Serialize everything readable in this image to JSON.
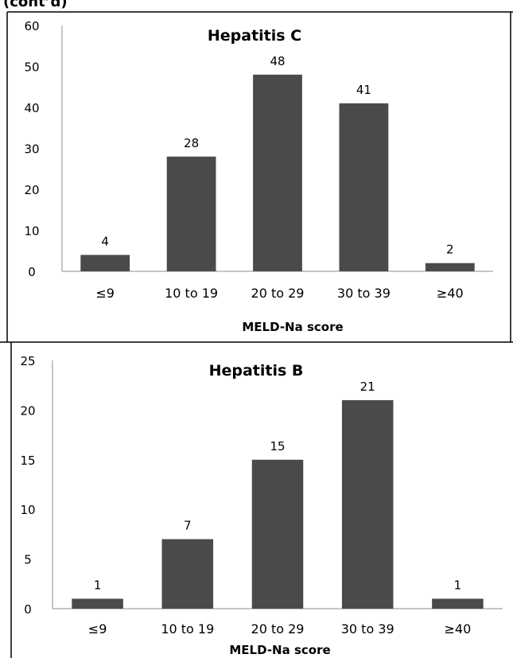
{
  "header_fragment": "(cont’d)",
  "chart_data": [
    {
      "type": "bar",
      "title": "Hepatitis C",
      "xlabel": "MELD-Na score",
      "ylabel": "",
      "categories": [
        "≤9",
        "10 to 19",
        "20 to 29",
        "30 to 39",
        "≥40"
      ],
      "values": [
        4,
        28,
        48,
        41,
        2
      ],
      "data_labels": [
        "4",
        "28",
        "48",
        "41",
        "2"
      ],
      "ylim": [
        0,
        60
      ],
      "yticks": [
        0,
        10,
        20,
        30,
        40,
        50,
        60
      ],
      "ytick_labels": [
        "0",
        "10",
        "20",
        "30",
        "40",
        "50",
        "60"
      ],
      "grid": false,
      "legend": "none",
      "bar_color": "#4a4a4a"
    },
    {
      "type": "bar",
      "title": "Hepatitis B",
      "xlabel": "MELD-Na score",
      "ylabel": "",
      "categories": [
        "≤9",
        "10 to 19",
        "20 to 29",
        "30 to 39",
        "≥40"
      ],
      "values": [
        1,
        7,
        15,
        21,
        1
      ],
      "data_labels": [
        "1",
        "7",
        "15",
        "21",
        "1"
      ],
      "ylim": [
        0,
        25
      ],
      "yticks": [
        0,
        5,
        10,
        15,
        20,
        25
      ],
      "ytick_labels": [
        "0",
        "5",
        "10",
        "15",
        "20",
        "25"
      ],
      "grid": false,
      "legend": "none",
      "bar_color": "#4a4a4a"
    }
  ]
}
